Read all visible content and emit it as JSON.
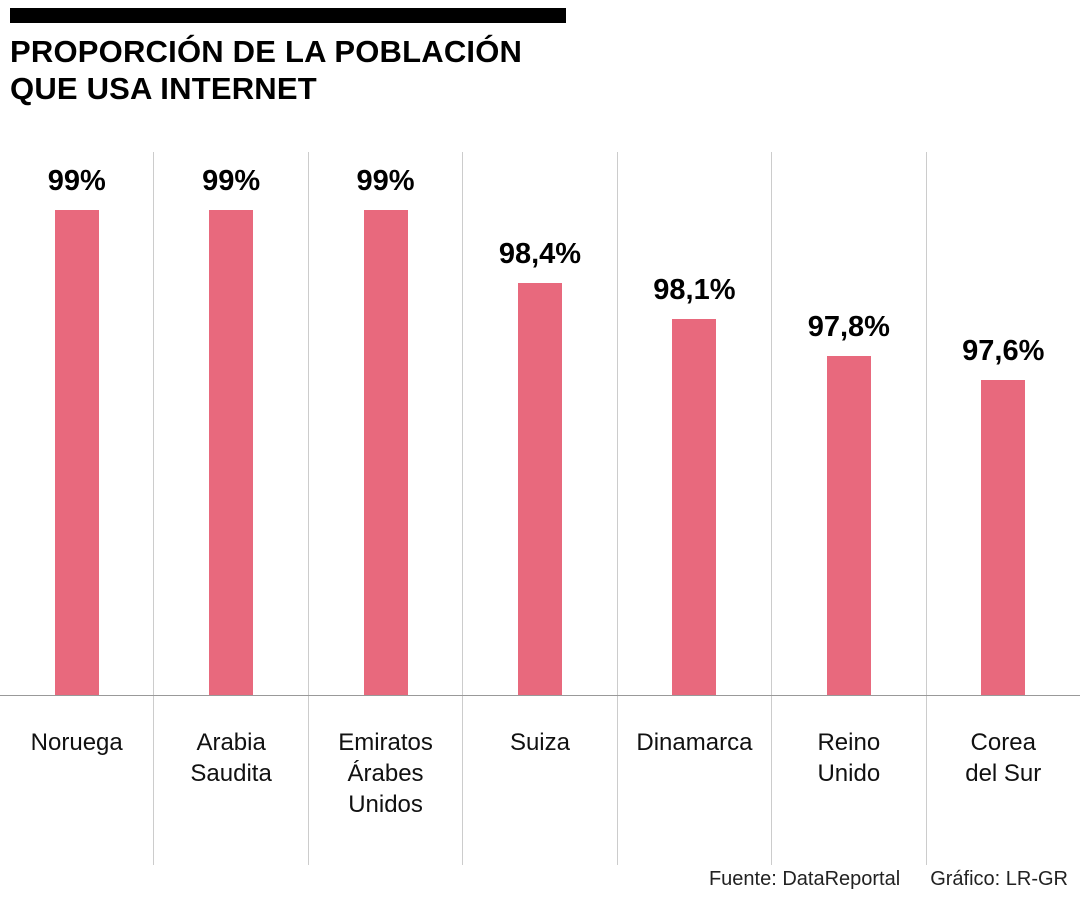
{
  "header": {
    "title_line1": "PROPORCIÓN DE LA POBLACIÓN",
    "title_line2": "QUE USA INTERNET"
  },
  "chart_data": {
    "type": "bar",
    "title": "Proporción de la población que usa internet",
    "categories": [
      "Noruega",
      "Arabia Saudita",
      "Emiratos Árabes Unidos",
      "Suiza",
      "Dinamarca",
      "Reino Unido",
      "Corea del Sur"
    ],
    "category_labels": [
      "Noruega",
      "Arabia\nSaudita",
      "Emiratos\nÁrabes\nUnidos",
      "Suiza",
      "Dinamarca",
      "Reino\nUnido",
      "Corea\ndel Sur"
    ],
    "values": [
      99,
      99,
      99,
      98.4,
      98.1,
      97.8,
      97.6
    ],
    "value_labels": [
      "99%",
      "99%",
      "99%",
      "98,4%",
      "98,1%",
      "97,8%",
      "97,6%"
    ],
    "ylabel": "",
    "xlabel": "",
    "ylim": [
      95,
      99
    ],
    "bar_color": "#e8697d",
    "grid": "vertical-separators-only",
    "legend": "none"
  },
  "footer": {
    "source_label": "Fuente: DataReportal",
    "credit_label": "Gráfico: LR-GR"
  }
}
